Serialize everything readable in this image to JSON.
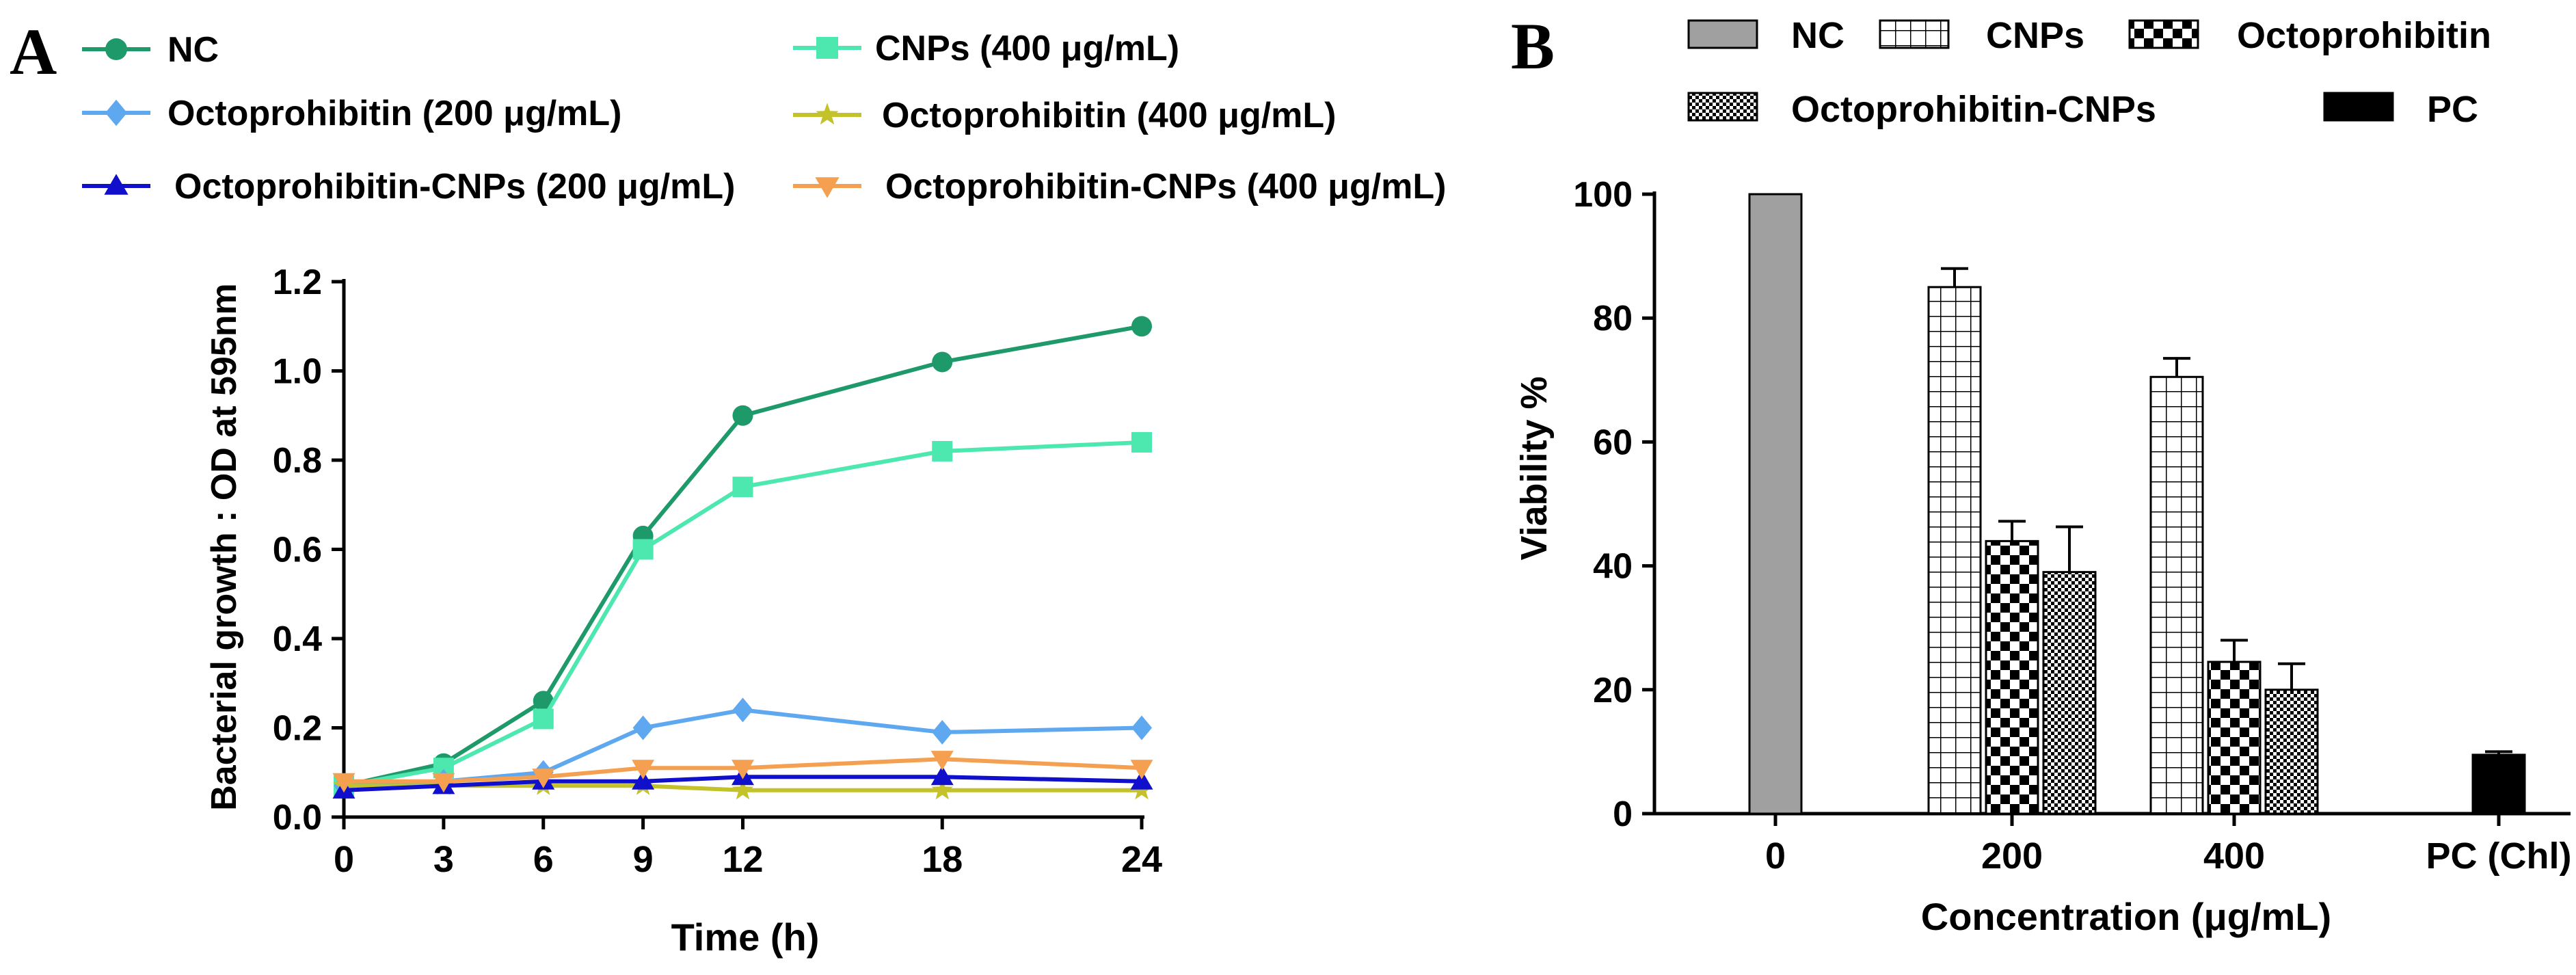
{
  "figure": {
    "panel_a_label": "A",
    "panel_b_label": "B"
  },
  "chart_data": [
    {
      "type": "line",
      "panel": "A",
      "xlabel": "Time (h)",
      "ylabel": "Bacterial growth : OD at 595nm",
      "x": [
        0,
        3,
        6,
        9,
        12,
        18,
        24
      ],
      "x_ticks": [
        "0",
        "3",
        "6",
        "9",
        "12",
        "18",
        "24"
      ],
      "xlim": [
        0,
        24
      ],
      "ylim": [
        0,
        1.2
      ],
      "y_ticks": [
        "0.0",
        "0.2",
        "0.4",
        "0.6",
        "0.8",
        "1.0",
        "1.2"
      ],
      "legend_position": "top",
      "series": [
        {
          "name": "NC",
          "color": "#1e9a6a",
          "marker": "circle",
          "values": [
            0.07,
            0.12,
            0.26,
            0.63,
            0.9,
            1.02,
            1.1
          ]
        },
        {
          "name": "CNPs (400 μg/mL)",
          "color": "#4de8b0",
          "marker": "square",
          "values": [
            0.07,
            0.11,
            0.22,
            0.6,
            0.74,
            0.82,
            0.84
          ]
        },
        {
          "name": "Octoprohibitin (200 μg/mL)",
          "color": "#5ea8f0",
          "marker": "diamond",
          "values": [
            0.07,
            0.08,
            0.1,
            0.2,
            0.24,
            0.19,
            0.2
          ]
        },
        {
          "name": "Octoprohibitin (400 μg/mL)",
          "color": "#c4c22a",
          "marker": "star",
          "values": [
            0.07,
            0.07,
            0.07,
            0.07,
            0.06,
            0.06,
            0.06
          ]
        },
        {
          "name": "Octoprohibitin-CNPs (200 μg/mL)",
          "color": "#1010cc",
          "marker": "triangle-up",
          "values": [
            0.06,
            0.07,
            0.08,
            0.08,
            0.09,
            0.09,
            0.08
          ]
        },
        {
          "name": "Octoprohibitin-CNPs (400 μg/mL)",
          "color": "#f5a050",
          "marker": "triangle-down",
          "values": [
            0.08,
            0.08,
            0.09,
            0.11,
            0.11,
            0.13,
            0.11
          ]
        }
      ]
    },
    {
      "type": "bar",
      "panel": "B",
      "xlabel": "Concentration (μg/mL)",
      "ylabel": "Viability %",
      "categories": [
        "0",
        "200",
        "400",
        "PC (Chl)"
      ],
      "ylim": [
        0,
        100
      ],
      "y_ticks": [
        "0",
        "20",
        "40",
        "60",
        "80",
        "100"
      ],
      "legend_position": "top",
      "series": [
        {
          "name": "NC",
          "pattern": "solid-gray",
          "color": "#a0a0a0",
          "values": [
            100,
            null,
            null,
            null
          ],
          "errors": [
            0,
            null,
            null,
            null
          ]
        },
        {
          "name": "CNPs",
          "pattern": "grid",
          "color": "#000000",
          "values": [
            null,
            85,
            70.5,
            null
          ],
          "errors": [
            null,
            3,
            3,
            null
          ]
        },
        {
          "name": "Octoprohibitin",
          "pattern": "checker",
          "color": "#000000",
          "values": [
            null,
            44,
            24.5,
            null
          ],
          "errors": [
            null,
            3.2,
            3.5,
            null
          ]
        },
        {
          "name": "Octoprohibitin-CNPs",
          "pattern": "fine-checker",
          "color": "#000000",
          "values": [
            null,
            39,
            20,
            null
          ],
          "errors": [
            null,
            7.3,
            4.2,
            null
          ]
        },
        {
          "name": "PC",
          "pattern": "solid-black",
          "color": "#000000",
          "values": [
            null,
            null,
            null,
            9.5
          ],
          "errors": [
            null,
            null,
            null,
            0.5
          ]
        }
      ]
    }
  ]
}
